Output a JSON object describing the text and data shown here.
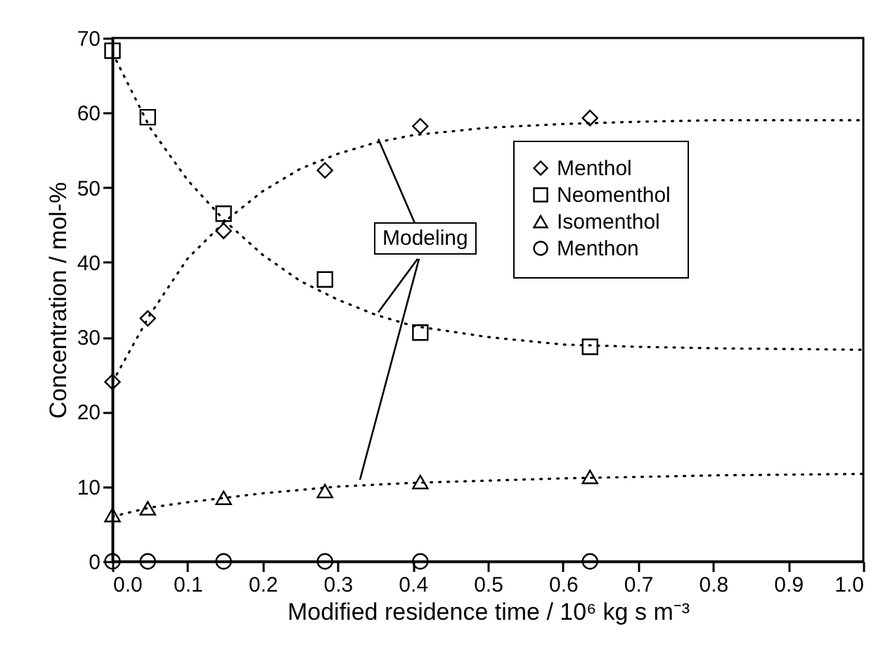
{
  "chart_data": {
    "type": "scatter",
    "xlabel": "Modified residence time / 10⁶ kg s m⁻³",
    "ylabel": "Concentration / mol-%",
    "x": [
      0,
      0.047,
      0.148,
      0.283,
      0.41,
      0.636
    ],
    "xlim": [
      0,
      1
    ],
    "xticks": [
      {
        "value": 0,
        "label": "0.0"
      },
      0.1,
      0.2,
      0.3,
      0.4,
      0.5,
      0.6,
      0.7,
      0.8,
      0.9,
      {
        "value": 1,
        "label": "1.0"
      }
    ],
    "ylim": [
      0,
      70
    ],
    "yticks": [
      0,
      10,
      20,
      30,
      40,
      50,
      60,
      70
    ],
    "grid": false,
    "legend": "top right",
    "annotations": [
      {
        "text": "Modeling",
        "x": 0.354,
        "y": 56.5
      }
    ],
    "series": [
      {
        "name": "Menthol",
        "color": "#000000",
        "marker": "diamond",
        "values": [
          24,
          32.5,
          44.2,
          52.3,
          58.2,
          59.3
        ]
      },
      {
        "name": "Neomenthol",
        "color": "#000000",
        "marker": "square",
        "values": [
          68.3,
          59.4,
          46.5,
          37.7,
          30.6,
          28.7
        ]
      },
      {
        "name": "Isomenthol",
        "color": "#000000",
        "marker": "triangle",
        "values": [
          6.2,
          7.1,
          8.5,
          9.4,
          10.6,
          11.3
        ]
      },
      {
        "name": "Menthon",
        "color": "#000000",
        "marker": "circle",
        "values": [
          0,
          0,
          0,
          0,
          0,
          0
        ]
      },
      {
        "type": "line",
        "color": "#000000",
        "line_style": "dotted",
        "x": [
          0,
          0.05,
          0.1,
          0.15,
          0.2,
          0.25,
          0.3,
          0.35,
          0.4,
          0.5,
          0.6,
          0.7,
          0.8,
          1.0
        ],
        "values": [
          24,
          33,
          40.5,
          45.5,
          49.5,
          52.5,
          54.5,
          56,
          57,
          58,
          58.5,
          58.8,
          59,
          59
        ]
      },
      {
        "type": "line",
        "color": "#000000",
        "line_style": "dotted",
        "x": [
          0,
          0.05,
          0.1,
          0.15,
          0.2,
          0.25,
          0.3,
          0.35,
          0.4,
          0.5,
          0.6,
          0.7,
          0.8,
          1.0
        ],
        "values": [
          68,
          58,
          51,
          45.5,
          41,
          37.5,
          35,
          33,
          31.5,
          30,
          29,
          28.7,
          28.5,
          28.3
        ]
      },
      {
        "type": "line",
        "color": "#000000",
        "line_style": "dotted",
        "x": [
          0,
          0.05,
          0.1,
          0.2,
          0.3,
          0.4,
          0.5,
          0.6,
          0.7,
          0.8,
          1.0
        ],
        "values": [
          6,
          7.2,
          7.9,
          9.1,
          10,
          10.5,
          10.8,
          11.1,
          11.3,
          11.5,
          11.7
        ]
      }
    ]
  }
}
